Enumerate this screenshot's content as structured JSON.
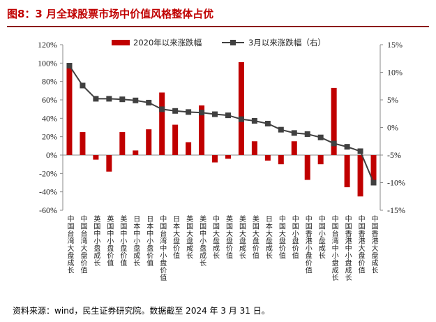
{
  "header": {
    "title": "图8：3 月全球股票市场中价值风格整体占优"
  },
  "footer": {
    "source": "资料来源：wind，民生证券研究院。数据截至 2024 年 3 月 31 日。"
  },
  "colors": {
    "bar": "#c00000",
    "line": "#404040"
  },
  "chart_data": {
    "type": "bar+line",
    "categories": [
      "中国台湾大盘成长",
      "中国台湾大盘价值",
      "英国中小盘成长",
      "英国中小盘价值",
      "美国中小盘价值",
      "日本中小盘成长",
      "日本中小盘价值",
      "中国台湾中小盘价值",
      "日本大盘价值",
      "英国大盘成长",
      "美国中小盘成长",
      "中国大盘成长",
      "英国大盘价值",
      "美国大盘成长",
      "美国大盘价值",
      "日本大盘成长",
      "中国大盘价值",
      "中国小盘价值",
      "中国香港小盘价值",
      "中国小盘成长",
      "中国台湾中小盘成长",
      "中国香港中小盘成长",
      "中国香港大盘价值",
      "中国香港大盘成长"
    ],
    "series": [
      {
        "name": "2020年以来涨跌幅",
        "type": "bar",
        "axis": "left",
        "values": [
          100,
          25,
          -5,
          -18,
          25,
          5,
          28,
          68,
          33,
          14,
          54,
          -8,
          -4,
          101,
          15,
          -6,
          -10,
          15,
          -27,
          -10,
          73,
          -35,
          -45,
          -27
        ]
      },
      {
        "name": "3月以来涨跌幅（右）",
        "type": "line",
        "axis": "right",
        "values": [
          11.2,
          7.6,
          5.2,
          5.2,
          5.1,
          4.9,
          4.5,
          3.3,
          3.0,
          2.8,
          2.7,
          2.4,
          2.2,
          1.5,
          1.2,
          0.7,
          -0.4,
          -1.0,
          -1.2,
          -1.8,
          -2.9,
          -3.5,
          -4.3,
          -10.0
        ]
      }
    ],
    "y_left": {
      "min": -60,
      "max": 120,
      "step": 20,
      "tick_labels": [
        "120%",
        "100%",
        "80%",
        "60%",
        "40%",
        "20%",
        "0%",
        "-20%",
        "-40%",
        "-60%"
      ]
    },
    "y_right": {
      "min": -15,
      "max": 15,
      "step": 5,
      "tick_labels": [
        "15%",
        "10%",
        "5%",
        "0%",
        "-5%",
        "-10%",
        "-15%"
      ]
    },
    "legend": {
      "position": "top-center",
      "bar_label": "2020年以来涨跌幅",
      "line_label": "3月以来涨跌幅（右）"
    },
    "grid": false
  }
}
